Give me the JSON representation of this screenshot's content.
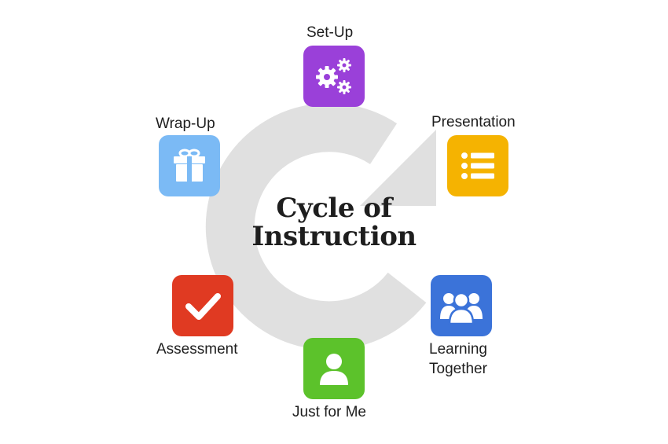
{
  "diagram": {
    "title_line_1": "Cycle of",
    "title_line_2": "Instruction",
    "arrow_color": "#e0e0e0",
    "steps": [
      {
        "label": "Set-Up",
        "color": "#9a40d9",
        "icon": "gears-icon"
      },
      {
        "label": "Presentation",
        "color": "#f5b301",
        "icon": "list-icon"
      },
      {
        "label_line_1": "Learning",
        "label_line_2": "Together",
        "color": "#3b73d9",
        "icon": "group-icon"
      },
      {
        "label": "Just for Me",
        "color": "#5cc22b",
        "icon": "person-icon"
      },
      {
        "label": "Assessment",
        "color": "#e03a22",
        "icon": "checkmark-icon"
      },
      {
        "label": "Wrap-Up",
        "color": "#7bbaf5",
        "icon": "gift-icon"
      }
    ]
  }
}
